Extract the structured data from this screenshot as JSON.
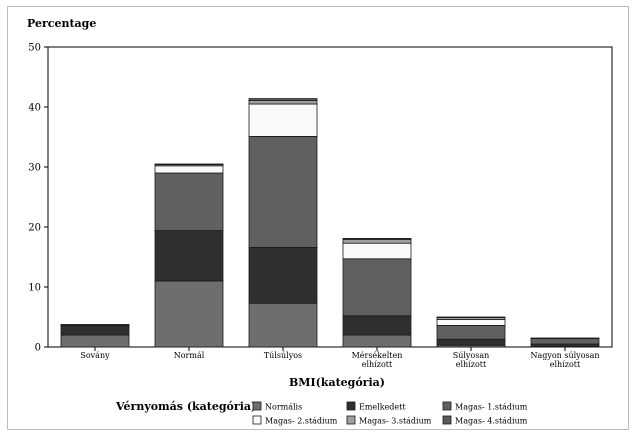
{
  "chart_data": {
    "type": "bar",
    "stacked": true,
    "ylabel": "Percentage",
    "xlabel": "BMI(kategória)",
    "ylim": [
      0,
      50
    ],
    "yticks": [
      0,
      10,
      20,
      30,
      40,
      50
    ],
    "grid": false,
    "categories": [
      [
        "Sovány"
      ],
      [
        "Normál"
      ],
      [
        "Túlsúlyos"
      ],
      [
        "Mérsékelten",
        "elhízott"
      ],
      [
        "Súlyosan",
        "elhízott"
      ],
      [
        "Nagyon súlyosan",
        "elhízott"
      ]
    ],
    "legend_title": "Vérnyomás (kategória)",
    "legend_placement": "bottom",
    "series": [
      {
        "name": "Normális",
        "color": "#6e6e6e",
        "values": [
          2.0,
          11.0,
          7.3,
          2.0,
          0.3,
          0.1
        ]
      },
      {
        "name": "Emelkedett",
        "color": "#2f2f2f",
        "values": [
          1.6,
          8.4,
          9.3,
          3.2,
          1.0,
          0.4
        ]
      },
      {
        "name": "Magas- 1.stádium",
        "color": "#606060",
        "values": [
          0.1,
          9.6,
          18.5,
          9.5,
          2.3,
          0.9
        ]
      },
      {
        "name": "Magas- 2.stádium",
        "color": "#fafafa",
        "values": [
          0.05,
          1.2,
          5.4,
          2.6,
          1.0,
          0.1
        ]
      },
      {
        "name": "Magas- 3.stádium",
        "color": "#a0a0a0",
        "values": [
          0.0,
          0.2,
          0.6,
          0.6,
          0.3,
          0.0
        ]
      },
      {
        "name": "Magas- 4.stádium",
        "color": "#5a5a5a",
        "values": [
          0.0,
          0.1,
          0.3,
          0.2,
          0.1,
          0.0
        ]
      }
    ]
  }
}
